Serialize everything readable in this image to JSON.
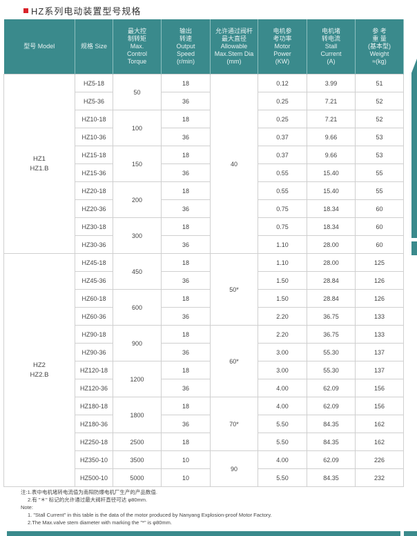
{
  "title": "HZ系列电动装置型号规格",
  "colors": {
    "header_bg": "#3a8a8c",
    "title_marker": "#d9232a"
  },
  "headers": [
    "型号 Model",
    "规格 Size",
    "最大控\n制转矩\nMax.\nControl\nTorque",
    "输出\n转速\nOutput\nSpeed\n(r/min)",
    "允许通过阀杆\n最大直径\nAllowable\nMax.Stem Dia\n(mm)",
    "电机参\n考功率\nMotor\nPower\n(KW)",
    "电机堵\n转电流\nStall\nCurrent\n(A)",
    "参 考\n重 量\n(基本型)\nWeight\n≈(kg)"
  ],
  "groups": {
    "models": [
      {
        "label": "HZ1\nHZ1.B",
        "rows": 10
      },
      {
        "label": "HZ2\nHZ2.B",
        "rows": 13
      }
    ],
    "torque": [
      {
        "v": "50",
        "rows": 2
      },
      {
        "v": "100",
        "rows": 2
      },
      {
        "v": "150",
        "rows": 2
      },
      {
        "v": "200",
        "rows": 2
      },
      {
        "v": "300",
        "rows": 2
      },
      {
        "v": "450",
        "rows": 2
      },
      {
        "v": "600",
        "rows": 2
      },
      {
        "v": "900",
        "rows": 2
      },
      {
        "v": "1200",
        "rows": 2
      },
      {
        "v": "1800",
        "rows": 2
      },
      {
        "v": "2500",
        "rows": 1
      },
      {
        "v": "3500",
        "rows": 1
      },
      {
        "v": "5000",
        "rows": 1
      }
    ],
    "stem": [
      {
        "v": "40",
        "rows": 10
      },
      {
        "v": "50*",
        "rows": 4
      },
      {
        "v": "60*",
        "rows": 4
      },
      {
        "v": "70*",
        "rows": 3
      },
      {
        "v": "90",
        "rows": 2
      }
    ]
  },
  "rows": [
    [
      "HZ5-18",
      "18",
      "0.12",
      "3.99",
      "51"
    ],
    [
      "HZ5-36",
      "36",
      "0.25",
      "7.21",
      "52"
    ],
    [
      "HZ10-18",
      "18",
      "0.25",
      "7.21",
      "52"
    ],
    [
      "HZ10-36",
      "36",
      "0.37",
      "9.66",
      "53"
    ],
    [
      "HZ15-18",
      "18",
      "0.37",
      "9.66",
      "53"
    ],
    [
      "HZ15-36",
      "36",
      "0.55",
      "15.40",
      "55"
    ],
    [
      "HZ20-18",
      "18",
      "0.55",
      "15.40",
      "55"
    ],
    [
      "HZ20-36",
      "36",
      "0.75",
      "18.34",
      "60"
    ],
    [
      "HZ30-18",
      "18",
      "0.75",
      "18.34",
      "60"
    ],
    [
      "HZ30-36",
      "36",
      "1.10",
      "28.00",
      "60"
    ],
    [
      "HZ45-18",
      "18",
      "1.10",
      "28.00",
      "125"
    ],
    [
      "HZ45-36",
      "36",
      "1.50",
      "28.84",
      "126"
    ],
    [
      "HZ60-18",
      "18",
      "1.50",
      "28.84",
      "126"
    ],
    [
      "HZ60-36",
      "36",
      "2.20",
      "36.75",
      "133"
    ],
    [
      "HZ90-18",
      "18",
      "2.20",
      "36.75",
      "133"
    ],
    [
      "HZ90-36",
      "36",
      "3.00",
      "55.30",
      "137"
    ],
    [
      "HZ120-18",
      "18",
      "3.00",
      "55.30",
      "137"
    ],
    [
      "HZ120-36",
      "36",
      "4.00",
      "62.09",
      "156"
    ],
    [
      "HZ180-18",
      "18",
      "4.00",
      "62.09",
      "156"
    ],
    [
      "HZ180-36",
      "36",
      "5.50",
      "84.35",
      "162"
    ],
    [
      "HZ250-18",
      "18",
      "5.50",
      "84.35",
      "162"
    ],
    [
      "HZ350-10",
      "10",
      "4.00",
      "62.09",
      "226"
    ],
    [
      "HZ500-10",
      "10",
      "5.50",
      "84.35",
      "232"
    ]
  ],
  "notes": {
    "cn1": "注:1.表中电机堵转电流值为南阳防爆电机厂生产的产品数值.",
    "cn2": "2.有 \"＊\" 标记的允许通过最大阀杆直径可达 φ80mm.",
    "en_label": "Note:",
    "en1": "1. \"Stall Current\" in this table is the data of the motor produced by Nanyang Explosion-proof Motor Factory.",
    "en2": "2.The Max.valve stem diameter with  marking  the  \"*\" is φ80mm."
  }
}
